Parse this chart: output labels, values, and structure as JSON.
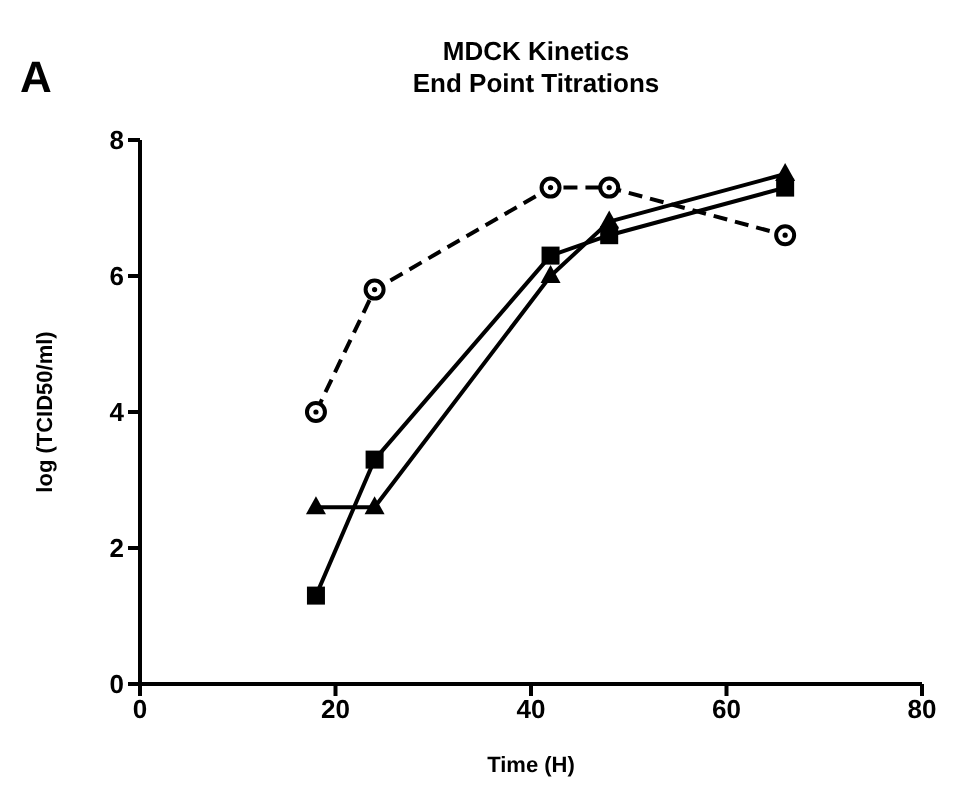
{
  "chart_data": {
    "type": "line",
    "title": "MDCK Kinetics\nEnd Point Titrations",
    "xlabel": "Time (H)",
    "ylabel": "log (TCID50/ml)",
    "annotations": [
      "A"
    ],
    "xlim": [
      0,
      80
    ],
    "xticks": [
      0,
      20,
      40,
      60,
      80
    ],
    "ylim": [
      0,
      8
    ],
    "yticks": [
      0,
      2,
      4,
      6,
      8
    ],
    "series": [
      {
        "color": "#000000",
        "marker": "circle",
        "line_style": "dashed",
        "x": [
          18,
          24,
          42,
          48,
          66
        ],
        "values": [
          4.0,
          5.8,
          7.3,
          7.3,
          6.6
        ]
      },
      {
        "color": "#000000",
        "marker": "square",
        "line_style": "solid",
        "x": [
          18,
          24,
          42,
          48,
          66
        ],
        "values": [
          1.3,
          3.3,
          6.3,
          6.6,
          7.3
        ]
      },
      {
        "color": "#000000",
        "marker": "triangle",
        "line_style": "solid",
        "x": [
          18,
          24,
          42,
          48,
          66
        ],
        "values": [
          2.6,
          2.6,
          6.0,
          6.8,
          7.5
        ]
      }
    ]
  }
}
